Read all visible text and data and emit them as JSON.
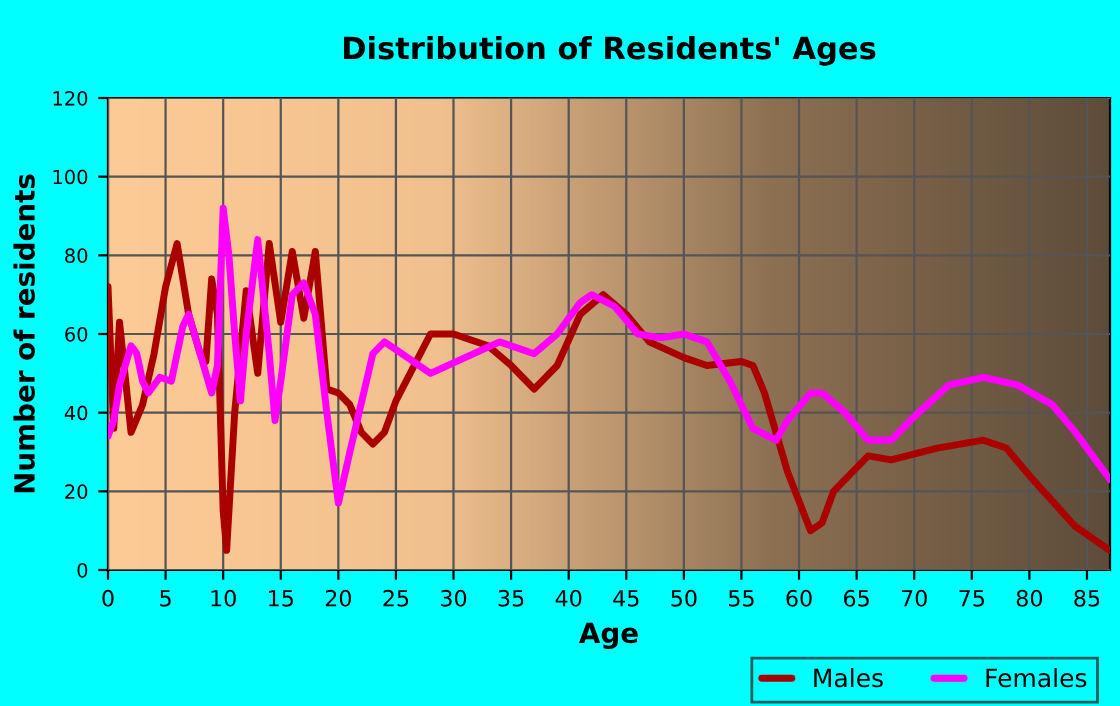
{
  "chart_data": {
    "type": "line",
    "title": "Distribution of Residents' Ages",
    "xlabel": "Age",
    "ylabel": "Number of residents",
    "xlim": [
      0,
      87
    ],
    "xticks": [
      0,
      5,
      10,
      15,
      20,
      25,
      30,
      35,
      40,
      45,
      50,
      55,
      60,
      65,
      70,
      75,
      80,
      85
    ],
    "ylim": [
      0,
      120
    ],
    "yticks": [
      0,
      20,
      40,
      60,
      80,
      100,
      120
    ],
    "grid": true,
    "legend": "bottom right",
    "marker": "none",
    "line_style": "solid",
    "series": [
      {
        "name": "Males",
        "color": "#aa0000",
        "x": [
          0,
          0.5,
          1,
          2,
          3,
          4,
          5,
          6,
          7,
          8,
          8.5,
          9,
          9.5,
          10,
          10.3,
          11,
          12,
          13,
          14,
          15,
          16,
          17,
          18,
          19,
          20,
          21,
          22,
          23,
          24,
          25,
          28,
          30,
          33,
          35,
          37,
          39,
          41,
          43,
          45,
          47,
          50,
          52,
          55,
          56,
          57,
          59,
          61,
          62,
          63,
          66,
          68,
          72,
          76,
          78,
          80,
          84,
          87
        ],
        "values": [
          72,
          36,
          63,
          35,
          42,
          55,
          72,
          83,
          65,
          55,
          53,
          74,
          65,
          15,
          5,
          40,
          71,
          50,
          83,
          63,
          81,
          64,
          81,
          46,
          45,
          42,
          35,
          32,
          35,
          43,
          60,
          60,
          57,
          52,
          46,
          52,
          65,
          70,
          65,
          58,
          54,
          52,
          53,
          52,
          45,
          25,
          10,
          12,
          20,
          29,
          28,
          31,
          33,
          31,
          24,
          11,
          5
        ]
      },
      {
        "name": "Females",
        "color": "#ff00ff",
        "x": [
          0,
          0.5,
          1,
          2,
          2.5,
          3,
          3.5,
          4.5,
          5.5,
          6.5,
          7,
          8,
          9,
          9.5,
          10,
          10.5,
          11,
          11.5,
          12,
          13,
          14,
          14.5,
          15,
          16,
          17,
          18,
          19,
          20,
          21,
          23,
          24,
          25,
          28,
          31,
          34,
          37,
          39,
          41,
          42,
          44,
          46,
          48,
          50,
          52,
          54,
          56,
          58,
          59,
          61,
          62,
          64,
          66,
          68,
          70,
          73,
          76,
          79,
          82,
          84,
          87
        ],
        "values": [
          34,
          38,
          47,
          57,
          55,
          48,
          45,
          49,
          48,
          62,
          65,
          55,
          45,
          52,
          92,
          80,
          60,
          43,
          60,
          84,
          55,
          38,
          48,
          70,
          73,
          65,
          40,
          17,
          30,
          55,
          58,
          56,
          50,
          54,
          58,
          55,
          60,
          68,
          70,
          67,
          60,
          59,
          60,
          58,
          48,
          36,
          33,
          38,
          45,
          45,
          40,
          33,
          33,
          39,
          47,
          49,
          47,
          42,
          35,
          23
        ]
      }
    ]
  }
}
